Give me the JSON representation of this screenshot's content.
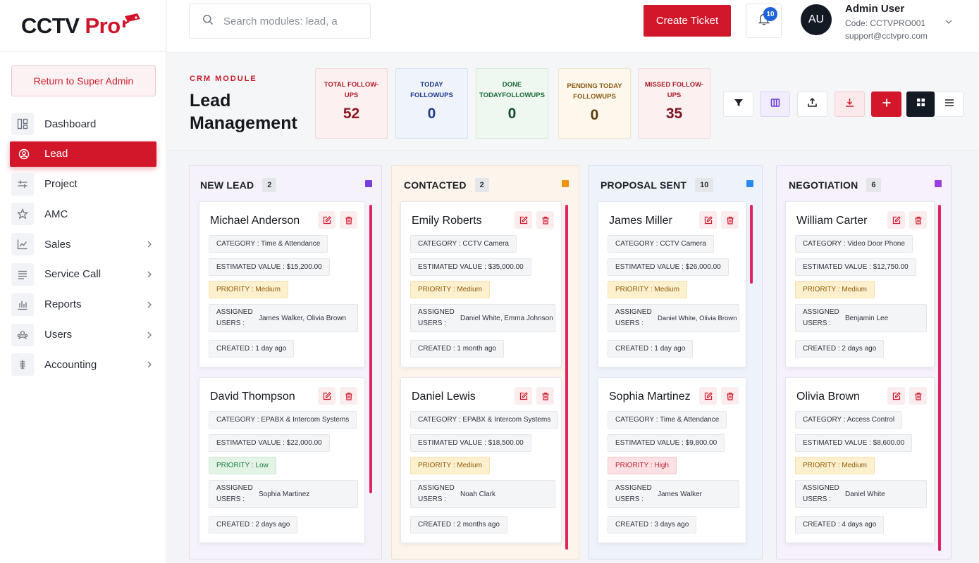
{
  "brand": {
    "name_main": "CCTV ",
    "name_accent": "Pro"
  },
  "sidebar": {
    "return_label": "Return to Super Admin",
    "items": [
      {
        "label": "Dashboard",
        "icon": "dashboard-icon",
        "active": false,
        "has_chevron": false
      },
      {
        "label": "Lead",
        "icon": "lead-icon",
        "active": true,
        "has_chevron": false
      },
      {
        "label": "Project",
        "icon": "project-icon",
        "active": false,
        "has_chevron": false
      },
      {
        "label": "AMC",
        "icon": "star-icon",
        "active": false,
        "has_chevron": false
      },
      {
        "label": "Sales",
        "icon": "chart-icon",
        "active": false,
        "has_chevron": true
      },
      {
        "label": "Service Call",
        "icon": "list-icon",
        "active": false,
        "has_chevron": true
      },
      {
        "label": "Reports",
        "icon": "bar-chart-icon",
        "active": false,
        "has_chevron": true
      },
      {
        "label": "Users",
        "icon": "users-icon",
        "active": false,
        "has_chevron": true
      },
      {
        "label": "Accounting",
        "icon": "accounting-icon",
        "active": false,
        "has_chevron": true
      }
    ]
  },
  "header": {
    "search_placeholder": "Search modules: lead, a",
    "create_ticket": "Create Ticket",
    "notification_count": "10",
    "user": {
      "initials": "AU",
      "name": "Admin User",
      "code": "Code: CCTVPRO001",
      "email": "support@cctvpro.com"
    }
  },
  "page": {
    "module_label": "CRM MODULE",
    "title": "Lead Management"
  },
  "stats": [
    {
      "label": "TOTAL FOLLOW-UPS",
      "value": "52"
    },
    {
      "label": "TODAY FOLLOWUPS",
      "value": "0"
    },
    {
      "label": "DONE TODAYFOLLOWUPS",
      "value": "0"
    },
    {
      "label": "PENDING TODAY FOLLOWUPS",
      "value": "0"
    },
    {
      "label": "MISSED FOLLOW-UPS",
      "value": "35"
    }
  ],
  "colors": {
    "accent": "#d3172b",
    "new_lead": "#7b3fe0",
    "contacted": "#f0930f",
    "proposal": "#2b88f0",
    "negotiation": "#9a3fe0"
  },
  "columns": [
    {
      "title": "NEW LEAD",
      "count": "2",
      "cards": [
        {
          "name": "Michael Anderson",
          "category": "CATEGORY :  Time & Attendance",
          "value": "ESTIMATED VALUE :  $15,200.00",
          "priority": "PRIORITY : Medium",
          "priority_level": "medium",
          "assigned_label": "ASSIGNED USERS :",
          "assigned": "James Walker, Olivia Brown",
          "created": "CREATED :  1 day ago"
        },
        {
          "name": "David Thompson",
          "category": "CATEGORY :  EPABX & Intercom Systems",
          "value": "ESTIMATED VALUE :  $22,000.00",
          "priority": "PRIORITY : Low",
          "priority_level": "low",
          "assigned_label": "ASSIGNED USERS :",
          "assigned": "Sophia Martinez",
          "created": "CREATED :  2 days ago"
        }
      ]
    },
    {
      "title": "CONTACTED",
      "count": "2",
      "cards": [
        {
          "name": "Emily Roberts",
          "category": "CATEGORY :  CCTV Camera",
          "value": "ESTIMATED VALUE :  $35,000.00",
          "priority": "PRIORITY : Medium",
          "priority_level": "medium",
          "assigned_label": "ASSIGNED USERS :",
          "assigned": "Daniel White, Emma Johnson",
          "created": "CREATED :  1 month ago"
        },
        {
          "name": "Daniel Lewis",
          "category": "CATEGORY :  EPABX & Intercom Systems",
          "value": "ESTIMATED VALUE :  $18,500.00",
          "priority": "PRIORITY : Medium",
          "priority_level": "medium",
          "assigned_label": "ASSIGNED USERS :",
          "assigned": "Noah Clark",
          "created": "CREATED :  2 months ago"
        }
      ]
    },
    {
      "title": "PROPOSAL SENT",
      "count": "10",
      "cards": [
        {
          "name": "James Miller",
          "category": "CATEGORY :  CCTV Camera",
          "value": "ESTIMATED VALUE :  $26,000.00",
          "priority": "PRIORITY : Medium",
          "priority_level": "medium",
          "assigned_label": "ASSIGNED USERS :",
          "assigned": "Daniel White, Olivia Brown",
          "created": "CREATED :  1 day ago"
        },
        {
          "name": "Sophia Martinez",
          "category": "CATEGORY :  Time & Attendance",
          "value": "ESTIMATED VALUE :  $9,800.00",
          "priority": "PRIORITY : High",
          "priority_level": "high",
          "assigned_label": "ASSIGNED USERS :",
          "assigned": "James Walker",
          "created": "CREATED :  3 days ago"
        }
      ]
    },
    {
      "title": "NEGOTIATION",
      "count": "6",
      "cards": [
        {
          "name": "William Carter",
          "category": "CATEGORY :  Video Door Phone",
          "value": "ESTIMATED VALUE :  $12,750.00",
          "priority": "PRIORITY : Medium",
          "priority_level": "medium",
          "assigned_label": "ASSIGNED USERS :",
          "assigned": "Benjamin Lee",
          "created": "CREATED :  2 days ago"
        },
        {
          "name": "Olivia Brown",
          "category": "CATEGORY :  Access Control",
          "value": "ESTIMATED VALUE :  $8,600.00",
          "priority": "PRIORITY : Medium",
          "priority_level": "medium",
          "assigned_label": "ASSIGNED USERS :",
          "assigned": "Daniel White",
          "created": "CREATED :  4 days ago"
        }
      ]
    }
  ]
}
